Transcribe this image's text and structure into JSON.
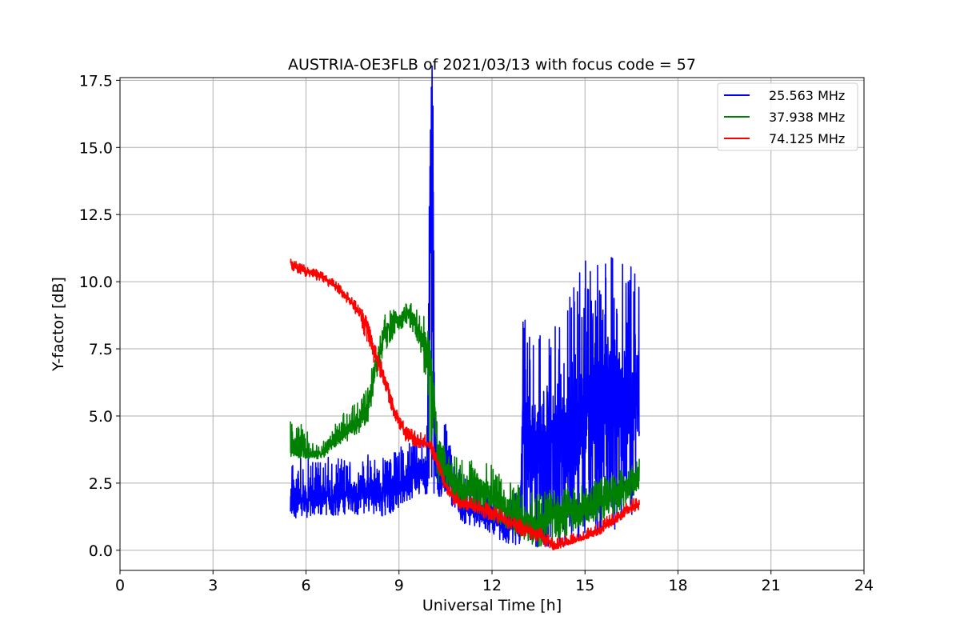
{
  "chart_data": {
    "type": "line",
    "title": "AUSTRIA-OE3FLB of 2021/03/13 with focus code = 57",
    "xlabel": "Universal Time [h]",
    "ylabel": "Y-factor [dB]",
    "xlim": [
      0,
      24
    ],
    "ylim": [
      -0.75,
      17.6
    ],
    "xticks": [
      0,
      3,
      6,
      9,
      12,
      15,
      18,
      21,
      24
    ],
    "xtick_labels": [
      "0",
      "3",
      "6",
      "9",
      "12",
      "15",
      "18",
      "21",
      "24"
    ],
    "yticks": [
      0,
      2.5,
      5,
      7.5,
      10,
      12.5,
      15,
      17.5
    ],
    "ytick_labels": [
      "0.0",
      "2.5",
      "5.0",
      "7.5",
      "10.0",
      "12.5",
      "15.0",
      "17.5"
    ],
    "grid": true,
    "legend_position": "top-right",
    "series": [
      {
        "name": "25.563 MHz",
        "color": "#0000ff",
        "x": [
          5.5,
          6.0,
          6.5,
          7.0,
          7.5,
          8.0,
          8.5,
          9.0,
          9.5,
          9.9,
          10.0,
          10.05,
          10.1,
          10.15,
          10.3,
          10.5,
          10.8,
          11.0,
          11.5,
          12.0,
          12.5,
          12.9,
          13.0,
          13.5,
          14.0,
          14.5,
          15.0,
          15.5,
          16.0,
          16.5,
          16.75
        ],
        "values": [
          2.0,
          1.9,
          2.1,
          2.0,
          2.2,
          2.3,
          2.1,
          2.5,
          2.9,
          3.0,
          10.0,
          16.5,
          14.0,
          3.5,
          2.5,
          3.0,
          2.2,
          1.6,
          1.5,
          1.2,
          0.9,
          1.2,
          4.5,
          4.0,
          3.5,
          4.2,
          5.2,
          5.5,
          5.8,
          5.5,
          6.0
        ],
        "envelope_min": [
          1.2,
          1.2,
          1.3,
          1.3,
          1.3,
          1.4,
          1.2,
          1.6,
          2.0,
          2.1,
          2.1,
          2.1,
          2.1,
          2.1,
          2.0,
          2.0,
          1.5,
          1.0,
          0.9,
          0.6,
          0.2,
          0.2,
          0.3,
          0.1,
          0.1,
          0.2,
          0.4,
          0.6,
          0.8,
          1.0,
          1.5
        ],
        "envelope_max": [
          3.3,
          3.5,
          3.6,
          3.4,
          3.5,
          3.6,
          3.5,
          3.8,
          4.3,
          4.0,
          15.5,
          16.8,
          16.3,
          5.5,
          3.5,
          5.0,
          3.2,
          3.0,
          2.5,
          2.0,
          1.6,
          2.5,
          8.9,
          8.4,
          8.2,
          10.0,
          10.8,
          10.6,
          11.4,
          10.8,
          10.2
        ]
      },
      {
        "name": "37.938 MHz",
        "color": "#008000",
        "x": [
          5.5,
          5.75,
          6.0,
          6.25,
          6.5,
          6.75,
          7.0,
          7.25,
          7.5,
          7.75,
          8.0,
          8.25,
          8.5,
          8.75,
          9.0,
          9.25,
          9.5,
          9.75,
          10.0,
          10.25,
          10.5,
          10.75,
          11.0,
          11.5,
          12.0,
          12.5,
          13.0,
          13.5,
          14.0,
          14.5,
          15.0,
          15.5,
          16.0,
          16.5,
          16.75
        ],
        "values": [
          3.8,
          3.7,
          3.6,
          3.6,
          3.6,
          3.9,
          4.2,
          4.4,
          4.6,
          4.8,
          5.4,
          6.8,
          8.0,
          8.5,
          8.6,
          8.9,
          8.6,
          7.8,
          7.4,
          3.5,
          3.0,
          2.6,
          2.2,
          2.4,
          2.0,
          1.6,
          1.2,
          1.0,
          1.4,
          1.5,
          1.5,
          1.8,
          2.2,
          2.5,
          2.8
        ],
        "envelope_min": [
          3.5,
          3.4,
          3.4,
          3.4,
          3.4,
          3.6,
          3.9,
          4.0,
          4.2,
          4.4,
          4.8,
          6.0,
          7.3,
          7.8,
          8.1,
          8.4,
          8.0,
          7.2,
          3.5,
          2.5,
          2.2,
          1.8,
          1.5,
          1.4,
          1.0,
          0.8,
          0.4,
          0.1,
          0.3,
          0.6,
          0.9,
          1.1,
          1.4,
          1.8,
          2.3
        ],
        "envelope_max": [
          4.9,
          4.9,
          4.5,
          4.0,
          4.0,
          4.3,
          4.8,
          5.2,
          5.4,
          5.6,
          6.4,
          7.4,
          8.8,
          9.0,
          8.9,
          9.3,
          9.1,
          8.9,
          8.0,
          4.4,
          3.8,
          3.6,
          3.4,
          3.3,
          3.2,
          2.8,
          2.3,
          2.1,
          2.3,
          2.5,
          2.4,
          2.7,
          2.9,
          3.2,
          3.5
        ]
      },
      {
        "name": "74.125 MHz",
        "color": "#ff0000",
        "x": [
          5.5,
          5.75,
          6.0,
          6.25,
          6.5,
          6.75,
          7.0,
          7.25,
          7.5,
          7.75,
          8.0,
          8.25,
          8.5,
          8.75,
          9.0,
          9.25,
          9.5,
          9.75,
          10.0,
          10.25,
          10.5,
          10.75,
          11.0,
          11.5,
          12.0,
          12.5,
          13.0,
          13.5,
          13.75,
          14.0,
          14.5,
          15.0,
          15.5,
          16.0,
          16.5,
          16.75
        ],
        "values": [
          10.7,
          10.5,
          10.4,
          10.3,
          10.2,
          10.0,
          9.8,
          9.5,
          9.2,
          8.8,
          8.3,
          7.2,
          6.6,
          5.5,
          4.8,
          4.3,
          4.1,
          4.0,
          3.9,
          3.2,
          2.4,
          2.0,
          1.8,
          1.6,
          1.4,
          1.1,
          0.8,
          0.6,
          0.4,
          0.2,
          0.3,
          0.5,
          0.8,
          1.2,
          1.6,
          1.7
        ],
        "envelope_min": [
          10.4,
          10.3,
          10.2,
          10.1,
          10.0,
          9.8,
          9.6,
          9.3,
          9.0,
          8.5,
          7.5,
          6.8,
          6.2,
          5.2,
          4.5,
          4.0,
          3.8,
          3.8,
          3.7,
          2.9,
          2.1,
          1.7,
          1.5,
          1.3,
          1.1,
          0.8,
          0.5,
          0.3,
          0.1,
          0.0,
          0.2,
          0.4,
          0.6,
          1.0,
          1.4,
          1.5
        ],
        "envelope_max": [
          10.9,
          10.7,
          10.6,
          10.5,
          10.4,
          10.2,
          10.0,
          9.7,
          9.4,
          9.1,
          8.6,
          7.6,
          6.9,
          5.8,
          5.1,
          4.6,
          4.5,
          4.4,
          4.3,
          3.5,
          2.7,
          2.3,
          2.1,
          1.9,
          1.7,
          1.4,
          1.1,
          0.9,
          0.7,
          0.4,
          0.6,
          0.8,
          1.1,
          1.5,
          1.9,
          2.0
        ]
      }
    ]
  }
}
